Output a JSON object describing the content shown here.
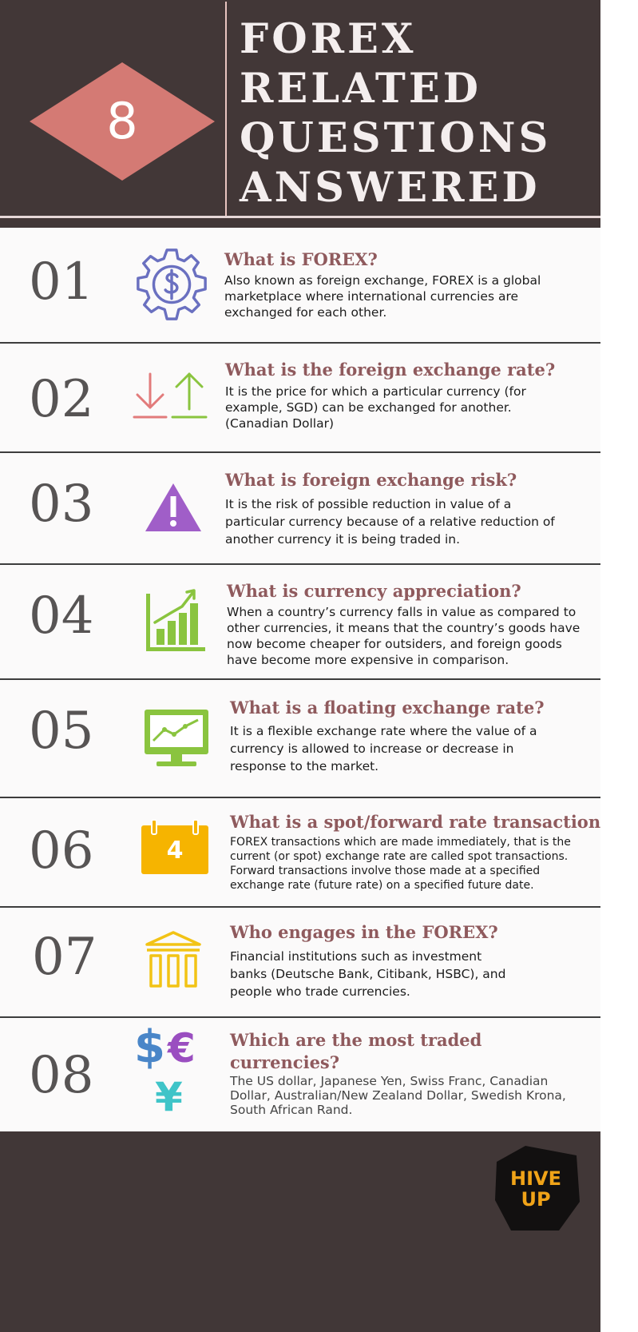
{
  "header": {
    "number": "8",
    "title_lines": [
      "FOREX",
      "RELATED",
      "QUESTIONS",
      "ANSWERED"
    ]
  },
  "colors": {
    "header_bg": "#423737",
    "diamond": "#d47a74",
    "question_text": "#8f5a5d",
    "number_text": "#575454",
    "logo_accent": "#f0a318"
  },
  "items": [
    {
      "number": "01",
      "icon": "gear-dollar-icon",
      "question": "What is FOREX?",
      "answer": "Also known as foreign exchange, FOREX is a global marketplace where international currencies are exchanged for each other."
    },
    {
      "number": "02",
      "icon": "up-down-arrows-icon",
      "question": "What is the foreign exchange rate?",
      "answer": "It is the price for which a particular currency (for example, SGD) can be exchanged for another. (Canadian Dollar)"
    },
    {
      "number": "03",
      "icon": "warning-triangle-icon",
      "question": "What is foreign exchange risk?",
      "answer": "It is the risk of possible reduction in value of a particular currency because of a relative reduction of another currency it is being traded in."
    },
    {
      "number": "04",
      "icon": "bar-chart-growth-icon",
      "question": "What is currency appreciation?",
      "answer": "When a country’s currency falls in value as compared to other currencies, it means that the country’s goods have now become cheaper for outsiders, and foreign goods have become more expensive in comparison."
    },
    {
      "number": "05",
      "icon": "monitor-line-chart-icon",
      "question": "What is a floating exchange rate?",
      "answer": "It is a flexible exchange rate where the value of a currency is allowed to increase or decrease in response to the market."
    },
    {
      "number": "06",
      "icon": "calendar-icon",
      "icon_label": "4",
      "question": "What is a spot/forward rate transaction?",
      "answer": "FOREX transactions which are made immediately, that is the current (or spot) exchange rate are called spot transactions. Forward transactions involve those made at a specified exchange rate (future rate) on a specified future date."
    },
    {
      "number": "07",
      "icon": "bank-building-icon",
      "question": "Who engages in the FOREX?",
      "answer": "Financial institutions such as investment banks (Deutsche Bank, Citibank, HSBC), and people who trade currencies."
    },
    {
      "number": "08",
      "icon": "currency-symbols-icon",
      "icon_symbols": [
        "$",
        "€",
        "¥"
      ],
      "question": "Which are the most traded currencies?",
      "answer": "The US dollar, Japanese Yen, Swiss Franc, Canadian Dollar, Australian/New Zealand Dollar, Swedish Krona, South African Rand."
    }
  ],
  "footer": {
    "logo_text": "HIVE UP"
  }
}
